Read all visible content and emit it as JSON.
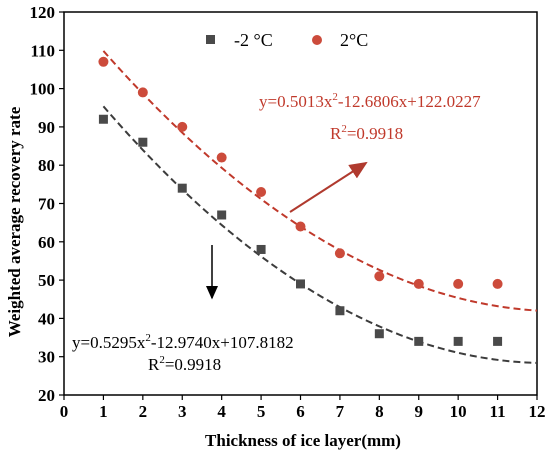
{
  "chart_data": {
    "type": "scatter",
    "xlabel": "Thickness of ice layer(mm)",
    "ylabel": "Weighted average recovery rate",
    "xlim": [
      0,
      12
    ],
    "ylim": [
      20,
      120
    ],
    "xticks": [
      "0",
      "1",
      "2",
      "3",
      "4",
      "5",
      "6",
      "7",
      "8",
      "9",
      "10",
      "11",
      "12"
    ],
    "yticks": [
      "20",
      "30",
      "40",
      "50",
      "60",
      "70",
      "80",
      "90",
      "100",
      "110",
      "120"
    ],
    "legend_position": "top-center",
    "series": [
      {
        "name": "-2 °C",
        "marker": "square",
        "color": "#4a4a4a",
        "x": [
          1,
          2,
          3,
          4,
          5,
          6,
          7,
          8,
          9,
          10,
          11
        ],
        "y": [
          92,
          86,
          74,
          67,
          58,
          49,
          42,
          36,
          34,
          34,
          34
        ],
        "fit": {
          "a": 0.5295,
          "b": -12.974,
          "c": 107.8182
        },
        "equation": {
          "main": "y=0.5295x",
          "sup": "2",
          "rest": "-12.9740x+107.8182",
          "r2": "=0.9918"
        }
      },
      {
        "name": "2°C",
        "marker": "circle",
        "color": "#cc4b3b",
        "x": [
          1,
          2,
          3,
          4,
          5,
          6,
          7,
          8,
          9,
          10,
          11
        ],
        "y": [
          107,
          99,
          90,
          82,
          73,
          64,
          57,
          51,
          49,
          49,
          49
        ],
        "fit": {
          "a": 0.5013,
          "b": -12.6806,
          "c": 122.0227
        },
        "equation": {
          "main": "y=0.5013x",
          "sup": "2",
          "rest": "-12.6806x+122.0227",
          "r2": "=0.9918"
        }
      }
    ],
    "fit_line_style": "dashed",
    "fit_range": [
      1,
      12
    ],
    "colors": {
      "fit_dark": "#3c3c3c",
      "fit_red": "#c0392b",
      "arrow_red": "#b03a2e",
      "arrow_black": "#000000"
    }
  }
}
